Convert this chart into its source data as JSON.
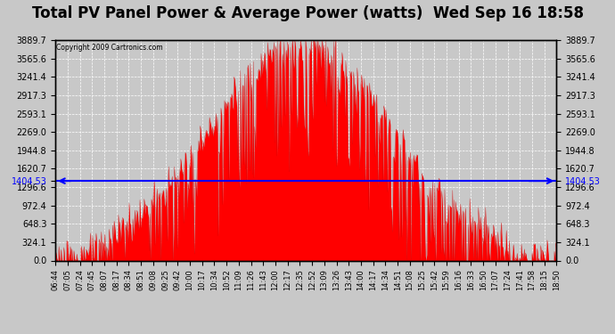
{
  "title": "Total PV Panel Power & Average Power (watts)  Wed Sep 16 18:58",
  "copyright": "Copyright 2009 Cartronics.com",
  "avg_line_value": 1404.53,
  "y_max": 3889.7,
  "y_min": 0.0,
  "y_ticks": [
    0.0,
    324.1,
    648.3,
    972.4,
    1296.6,
    1620.7,
    1944.8,
    2269.0,
    2593.1,
    2917.3,
    3241.4,
    3565.6,
    3889.7
  ],
  "bar_color": "#FF0000",
  "avg_line_color": "#0000FF",
  "background_color": "#C8C8C8",
  "grid_color": "#FFFFFF",
  "title_fontsize": 12,
  "x_labels": [
    "06:44",
    "07:05",
    "07:24",
    "07:45",
    "08:07",
    "08:17",
    "08:34",
    "08:51",
    "09:08",
    "09:25",
    "09:42",
    "10:00",
    "10:17",
    "10:34",
    "10:52",
    "11:09",
    "11:26",
    "11:43",
    "12:00",
    "12:17",
    "12:35",
    "12:52",
    "13:09",
    "13:26",
    "13:43",
    "14:00",
    "14:17",
    "14:34",
    "14:51",
    "15:08",
    "15:25",
    "15:42",
    "15:59",
    "16:16",
    "16:33",
    "16:50",
    "17:07",
    "17:24",
    "17:41",
    "17:58",
    "18:15",
    "18:50"
  ]
}
